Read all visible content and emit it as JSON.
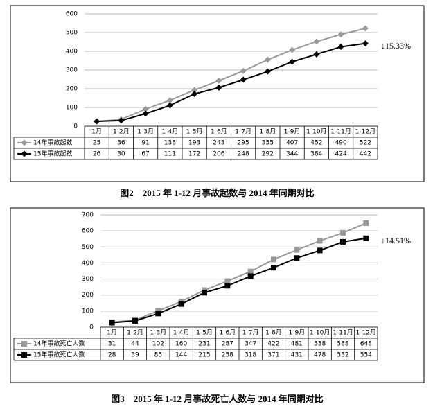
{
  "chart_data": [
    {
      "type": "line",
      "title": "图2　2015 年 1-12 月事故起数与 2014 年同期对比",
      "categories": [
        "1月",
        "1-2月",
        "1-3月",
        "1-4月",
        "1-5月",
        "1-6月",
        "1-7月",
        "1-8月",
        "1-9月",
        "1-10月",
        "1-11月",
        "1-12月"
      ],
      "series": [
        {
          "name": "14年事故起数",
          "color": "#999999",
          "marker": "diamond",
          "values": [
            25,
            36,
            91,
            138,
            193,
            243,
            295,
            355,
            407,
            452,
            490,
            522
          ]
        },
        {
          "name": "15年事故起数",
          "color": "#000000",
          "marker": "diamond",
          "values": [
            26,
            30,
            67,
            111,
            172,
            206,
            248,
            292,
            344,
            384,
            424,
            442
          ]
        }
      ],
      "ylim": [
        0,
        600
      ],
      "yticks": [
        0,
        100,
        200,
        300,
        400,
        500,
        600
      ],
      "grid": true,
      "annotation": "↓15.33%"
    },
    {
      "type": "line",
      "title": "图3　2015 年 1-12 月事故死亡人数与 2014 年同期对比",
      "categories": [
        "1月",
        "1-2月",
        "1-3月",
        "1-4月",
        "1-5月",
        "1-6月",
        "1-7月",
        "1-8月",
        "1-9月",
        "1-10月",
        "1-11月",
        "1-12月"
      ],
      "series": [
        {
          "name": "14年事故死亡人数",
          "color": "#999999",
          "marker": "square",
          "values": [
            31,
            44,
            102,
            160,
            231,
            287,
            347,
            422,
            481,
            538,
            588,
            648
          ]
        },
        {
          "name": "15年事故死亡人数",
          "color": "#000000",
          "marker": "square",
          "values": [
            28,
            39,
            85,
            144,
            215,
            258,
            318,
            371,
            431,
            478,
            532,
            554
          ]
        }
      ],
      "ylim": [
        0,
        700
      ],
      "yticks": [
        0,
        100,
        200,
        300,
        400,
        500,
        600,
        700
      ],
      "grid": true,
      "annotation": "↓14.51%"
    }
  ]
}
